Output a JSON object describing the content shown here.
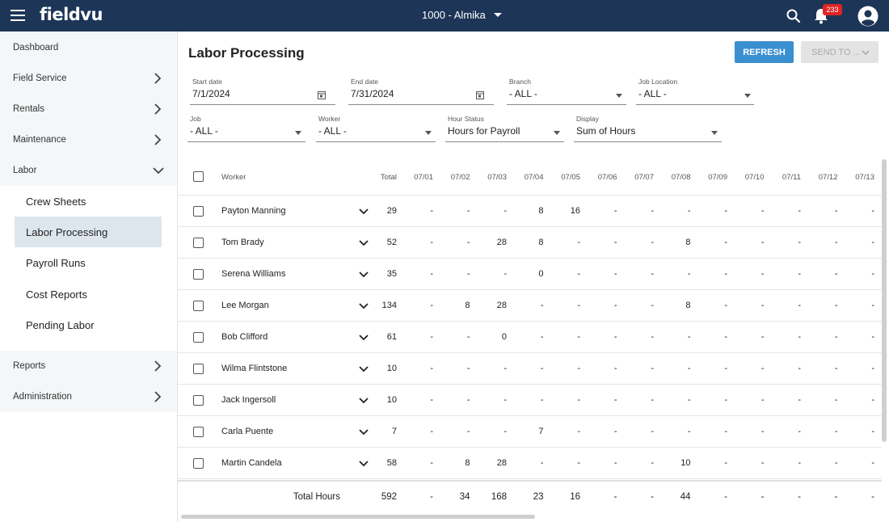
{
  "header": {
    "logo": "fieldvu",
    "company": "1000 - Almika",
    "notification_count": "233"
  },
  "sidebar": {
    "items": [
      {
        "label": "Dashboard"
      },
      {
        "label": "Field Service"
      },
      {
        "label": "Rentals"
      },
      {
        "label": "Maintenance"
      },
      {
        "label": "Labor"
      },
      {
        "label": "Reports"
      },
      {
        "label": "Administration"
      }
    ],
    "labor_sub": [
      {
        "label": "Crew Sheets"
      },
      {
        "label": "Labor Processing"
      },
      {
        "label": "Payroll Runs"
      },
      {
        "label": "Cost Reports"
      },
      {
        "label": "Pending Labor"
      }
    ]
  },
  "main": {
    "title": "Labor Processing",
    "refresh_label": "REFRESH",
    "send_label": "SEND TO ...",
    "filters": {
      "start_date": {
        "label": "Start date",
        "value": "7/1/2024"
      },
      "end_date": {
        "label": "End date",
        "value": "7/31/2024"
      },
      "branch": {
        "label": "Branch",
        "value": "- ALL -"
      },
      "job_location": {
        "label": "Job Location",
        "value": "- ALL -"
      },
      "job": {
        "label": "Job",
        "value": "- ALL -"
      },
      "worker": {
        "label": "Worker",
        "value": "- ALL -"
      },
      "hour_status": {
        "label": "Hour Status",
        "value": "Hours for Payroll"
      },
      "display": {
        "label": "Display",
        "value": "Sum of Hours"
      }
    },
    "table": {
      "col_worker": "Worker",
      "col_total": "Total",
      "dates": [
        "07/01",
        "07/02",
        "07/03",
        "07/04",
        "07/05",
        "07/06",
        "07/07",
        "07/08",
        "07/09",
        "07/10",
        "07/11",
        "07/12",
        "07/13"
      ],
      "rows": [
        {
          "worker": "Payton Manning",
          "total": "29",
          "days": [
            "-",
            "-",
            "-",
            "8",
            "16",
            "-",
            "-",
            "-",
            "-",
            "-",
            "-",
            "-",
            "-"
          ]
        },
        {
          "worker": "Tom Brady",
          "total": "52",
          "days": [
            "-",
            "-",
            "28",
            "8",
            "-",
            "-",
            "-",
            "8",
            "-",
            "-",
            "-",
            "-",
            "-"
          ]
        },
        {
          "worker": "Serena Williams",
          "total": "35",
          "days": [
            "-",
            "-",
            "-",
            "0",
            "-",
            "-",
            "-",
            "-",
            "-",
            "-",
            "-",
            "-",
            "-"
          ]
        },
        {
          "worker": "Lee Morgan",
          "total": "134",
          "days": [
            "-",
            "8",
            "28",
            "-",
            "-",
            "-",
            "-",
            "8",
            "-",
            "-",
            "-",
            "-",
            "-"
          ]
        },
        {
          "worker": "Bob Clifford",
          "total": "61",
          "days": [
            "-",
            "-",
            "0",
            "-",
            "-",
            "-",
            "-",
            "-",
            "-",
            "-",
            "-",
            "-",
            "-"
          ]
        },
        {
          "worker": "Wilma Flintstone",
          "total": "10",
          "days": [
            "-",
            "-",
            "-",
            "-",
            "-",
            "-",
            "-",
            "-",
            "-",
            "-",
            "-",
            "-",
            "-"
          ]
        },
        {
          "worker": "Jack Ingersoll",
          "total": "10",
          "days": [
            "-",
            "-",
            "-",
            "-",
            "-",
            "-",
            "-",
            "-",
            "-",
            "-",
            "-",
            "-",
            "-"
          ]
        },
        {
          "worker": "Carla Puente",
          "total": "7",
          "days": [
            "-",
            "-",
            "-",
            "7",
            "-",
            "-",
            "-",
            "-",
            "-",
            "-",
            "-",
            "-",
            "-"
          ]
        },
        {
          "worker": "Martin Candela",
          "total": "58",
          "days": [
            "-",
            "8",
            "28",
            "-",
            "-",
            "-",
            "-",
            "10",
            "-",
            "-",
            "-",
            "-",
            "-"
          ]
        }
      ],
      "totals": {
        "label": "Total Hours",
        "total": "592",
        "days": [
          "-",
          "34",
          "168",
          "23",
          "16",
          "-",
          "-",
          "44",
          "-",
          "-",
          "-",
          "-",
          "-"
        ]
      }
    }
  },
  "colors": {
    "topbar": "#1d3557",
    "accent": "#3a8fd0",
    "badge": "#e02424"
  }
}
